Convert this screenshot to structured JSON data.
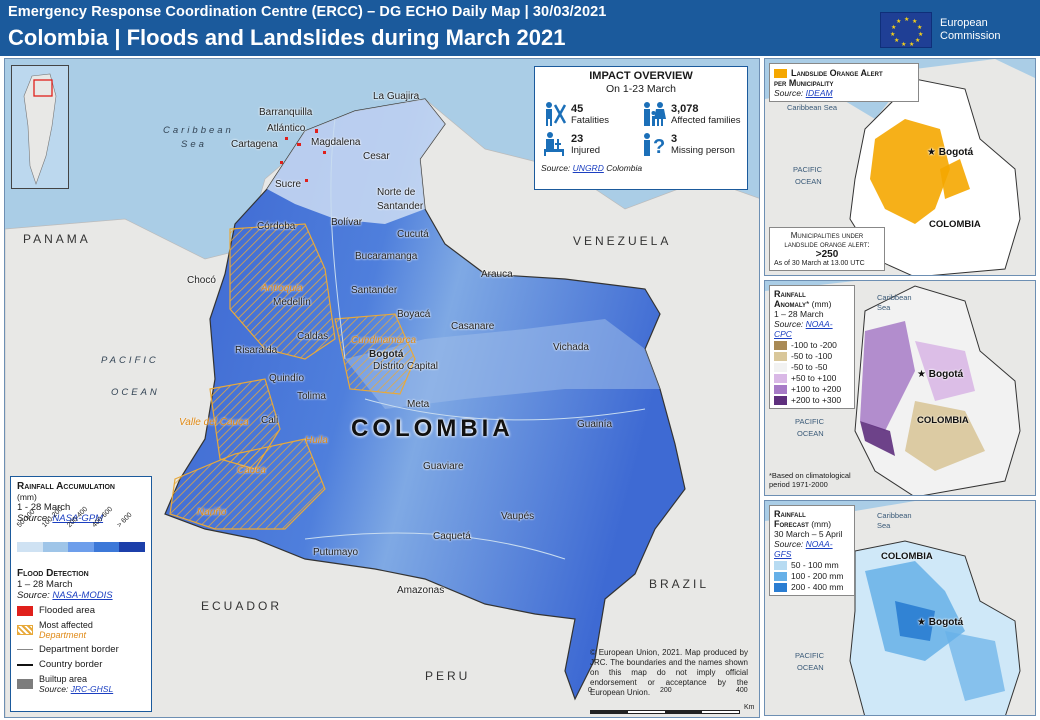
{
  "header": {
    "line1": "Emergency Response Coordination Centre (ERCC) – DG ECHO Daily Map | 30/03/2021",
    "line2": "Colombia | Floods and Landslides during March 2021",
    "logo_text_1": "European",
    "logo_text_2": "Commission"
  },
  "impact": {
    "title": "IMPACT OVERVIEW",
    "subtitle": "On 1-23 March",
    "fatalities_value": "45",
    "fatalities_label": "Fatalities",
    "families_value": "3,078",
    "families_label": "Affected families",
    "injured_value": "23",
    "injured_label": "Injured",
    "missing_value": "3",
    "missing_label": "Missing person",
    "source_prefix": "Source:",
    "source_link": "UNGRD",
    "source_suffix": "Colombia"
  },
  "map_labels": {
    "colombia": "COLOMBIA",
    "panama": "PANAMA",
    "venezuela": "VENEZUELA",
    "ecuador": "ECUADOR",
    "peru": "PERU",
    "brazil": "BRAZIL",
    "caribbean_1": "Caribbean",
    "caribbean_2": "Sea",
    "pacific_1": "PACIFIC",
    "pacific_2": "OCEAN",
    "barranquilla": "Barranquilla",
    "atlantico": "Atlántico",
    "cartagena": "Cartagena",
    "magdalena": "Magdalena",
    "la_guajira": "La Guajira",
    "cesar": "Cesar",
    "sucre": "Sucre",
    "norte_santander_1": "Norte de",
    "norte_santander_2": "Santander",
    "cordoba": "Córdoba",
    "bolivar": "Bolívar",
    "cucuta": "Cucutá",
    "bucaramanga": "Bucaramanga",
    "choco": "Chocó",
    "antioquia": "Antioquia",
    "medellin": "Medellín",
    "santander": "Santander",
    "arauca": "Arauca",
    "boyaca": "Boyacá",
    "casanare": "Casanare",
    "caldas": "Caldas",
    "cundinamarca": "Cundinamarca",
    "bogota": "Bogotá",
    "distrito_capital": "Distrito Capital",
    "vichada": "Vichada",
    "risaralda": "Risaralda",
    "quindio": "Quindío",
    "tolima": "Tolima",
    "valle_cauca": "Valle del Cauca",
    "cali": "Cali",
    "meta": "Meta",
    "guainia": "Guainía",
    "huila": "Huila",
    "cauca": "Cauca",
    "guaviare": "Guaviare",
    "narino": "Nariño",
    "vaupes": "Vaupés",
    "caqueta": "Caquetá",
    "putumayo": "Putumayo",
    "amazonas": "Amazonas"
  },
  "legend": {
    "rain_title": "Rainfall Accumulation",
    "rain_unit": "(mm)",
    "rain_period": "1 - 28 March",
    "rain_source_prefix": "Source:",
    "rain_source_link": "NASA-GPM",
    "rain_classes": [
      "50-100",
      "100-200",
      "200-400",
      "400-600",
      "> 600"
    ],
    "rain_colors": [
      "#cfe2f3",
      "#9fc5e8",
      "#6d9eeb",
      "#3c78d8",
      "#1c3faa"
    ],
    "flood_title": "Flood Detection",
    "flood_period": "1 – 28 March",
    "flood_source_prefix": "Source:",
    "flood_source_link": "NASA-MODIS",
    "flooded_area": "Flooded area",
    "most_affected": "Most affected",
    "department": "Department",
    "department_border": "Department border",
    "country_border": "Country border",
    "builtup_area": "Builtup area",
    "builtup_source_prefix": "Source:",
    "builtup_source_link": "JRC-GHSL",
    "flood_color": "#e0201b",
    "affected_color": "#e8a93a"
  },
  "copyright": "© European Union, 2021. Map produced by JRC. The boundaries and the names shown on this map do not imply official endorsement or acceptance by the European Union.",
  "scale": {
    "l0": "0",
    "l1": "200",
    "l2": "400",
    "unit": "Km"
  },
  "panel1": {
    "title_1": "Landslide Orange Alert",
    "title_2": "per Municipality",
    "source_prefix": "Source:",
    "source_link": "IDEAM",
    "caribbean": "Caribbean Sea",
    "pacific_1": "PACIFIC",
    "pacific_2": "OCEAN",
    "bogota": "Bogotá",
    "colombia": "COLOMBIA",
    "box_title_1": "Municipalities under",
    "box_title_2": "landslide orange alert:",
    "box_value": ">250",
    "box_note": "As of 30 March at 13.00 UTC",
    "alert_color": "#f5a700"
  },
  "panel2": {
    "title_1": "Rainfall",
    "title_2": "Anomaly",
    "title_mark": "*",
    "unit": "(mm)",
    "period": "1 – 28 March",
    "source_prefix": "Source:",
    "source_link": "NOAA-CPC",
    "classes": [
      "-100 to -200",
      "-50 to -100",
      "-50 to -50",
      "+50 to +100",
      "+100 to +200",
      "+200 to +300"
    ],
    "colors": [
      "#a98a55",
      "#d9c79a",
      "#f2f2f2",
      "#d9b8e6",
      "#a77bc7",
      "#5e2f7d"
    ],
    "caribbean_1": "Caribbean",
    "caribbean_2": "Sea",
    "pacific_1": "PACIFIC",
    "pacific_2": "OCEAN",
    "bogota": "Bogotá",
    "colombia": "COLOMBIA",
    "note_1": "*Based on climatological",
    "note_2": "period 1971-2000"
  },
  "panel3": {
    "title_1": "Rainfall",
    "title_2": "Forecast",
    "unit": "(mm)",
    "period": "30 March – 5 April",
    "source_prefix": "Source:",
    "source_link": "NOAA-GFS",
    "classes": [
      "50 - 100 mm",
      "100 - 200 mm",
      "200 - 400 mm"
    ],
    "colors": [
      "#b7dbf2",
      "#66b0e8",
      "#2a7dd2"
    ],
    "caribbean_1": "Caribbean",
    "caribbean_2": "Sea",
    "pacific_1": "PACIFIC",
    "pacific_2": "OCEAN",
    "colombia": "COLOMBIA",
    "bogota": "Bogotá"
  }
}
